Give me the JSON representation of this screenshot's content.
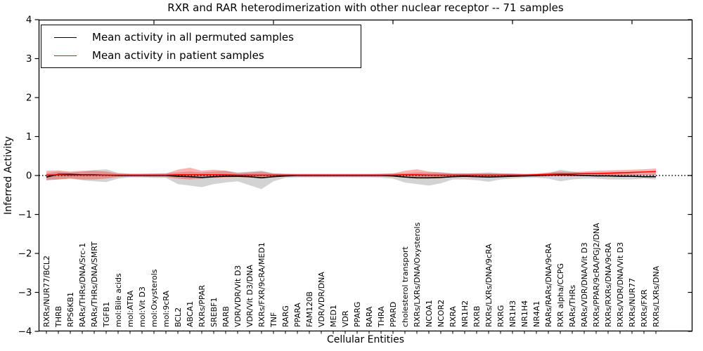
{
  "legend": {
    "entries": [
      {
        "label": "Mean activity in all permuted samples",
        "color": "#000000"
      },
      {
        "label": "Mean activity in patient samples",
        "color": "#ff0000"
      }
    ]
  },
  "chart_data": {
    "type": "line",
    "title": "RXR and RAR heterodimerization with other nuclear receptor -- 71 samples",
    "xlabel": "Cellular Entities",
    "ylabel": "Inferred Activity",
    "ylim": [
      -4,
      4
    ],
    "grid": false,
    "legend_position": "upper left",
    "zero_reference_line": {
      "style": "dotted",
      "color": "#000000",
      "y": 0
    },
    "yticks": {
      "values": [
        4,
        3,
        2,
        1,
        0,
        -1,
        -2,
        -3,
        -4
      ],
      "labels": [
        "4",
        "3",
        "2",
        "1",
        "0",
        "−1",
        "−2",
        "−3",
        "−4"
      ]
    },
    "categories": [
      "RXRs/NUR77/BCL2",
      "THRB",
      "RPS6KB1",
      "RARs/THRs/DNA/Src-1",
      "RARs/THRs/DNA/SMRT",
      "TGFB1",
      "mol:Bile acids",
      "mol:ATRA",
      "mol:Vit D3",
      "mol:Oxysterols",
      "mol:9cRA",
      "BCL2",
      "ABCA1",
      "RXRs/PPAR",
      "SREBF1",
      "RARB",
      "VDR/VDR/Vit D3",
      "VDR/Vit D3/DNA",
      "RXRs/FXR/9cRA/MED1",
      "TNF",
      "RARG",
      "PPARA",
      "FAM120B",
      "VDR/VDR/DNA",
      "MED1",
      "VDR",
      "PPARG",
      "RARA",
      "THRA",
      "PPARD",
      "cholesterol transport",
      "RXRs/LXRs/DNA/Oxysterols",
      "NCOA1",
      "NCOR2",
      "RXRA",
      "NR1H2",
      "RXRB",
      "RXRs/LXRs/DNA/9cRA",
      "RXRG",
      "NR1H3",
      "NR1H4",
      "NR4A1",
      "RARs/RARs/DNA/9cRA",
      "RXR alpha/CCPG",
      "RARs/THRs",
      "RARs/VDR/DNA/Vit D3",
      "RXRs/PPAR/9cRA/PGJ2/DNA",
      "RXRs/RXRs/DNA/9cRA",
      "RXRs/VDR/DNA/Vit D3",
      "RXRs/NUR77",
      "RXRs/FXR",
      "RXRs/LXRs/DNA"
    ],
    "series": [
      {
        "name": "Mean activity in all permuted samples",
        "color": "#000000",
        "band_color": "rgba(110,110,110,0.30)",
        "values": [
          -0.04,
          0.03,
          0.03,
          0.02,
          0.02,
          0.01,
          0,
          0,
          0,
          0,
          0,
          -0.02,
          -0.03,
          -0.05,
          -0.03,
          -0.02,
          -0.02,
          -0.03,
          -0.06,
          -0.03,
          -0.01,
          0,
          0,
          0,
          0,
          0,
          0,
          0,
          0,
          -0.01,
          -0.04,
          -0.06,
          -0.06,
          -0.05,
          -0.03,
          -0.02,
          -0.03,
          -0.04,
          -0.03,
          -0.02,
          -0.01,
          0,
          0.01,
          0.02,
          0.01,
          0,
          -0.01,
          -0.01,
          -0.02,
          -0.02,
          -0.03,
          -0.03
        ],
        "band_upper": [
          0.06,
          0.1,
          0.08,
          0.1,
          0.14,
          0.16,
          0.07,
          0.05,
          0.05,
          0.05,
          0.06,
          0.08,
          0.1,
          0.08,
          0.1,
          0.12,
          0.08,
          0.1,
          0.12,
          0.06,
          0.05,
          0.04,
          0.04,
          0.04,
          0.04,
          0.04,
          0.04,
          0.04,
          0.05,
          0.06,
          0.06,
          0.08,
          0.08,
          0.08,
          0.06,
          0.06,
          0.06,
          0.08,
          0.06,
          0.05,
          0.04,
          0.04,
          0.06,
          0.15,
          0.1,
          0.06,
          0.06,
          0.05,
          0.05,
          0.05,
          0.05,
          0.05
        ],
        "band_lower": [
          -0.12,
          -0.1,
          -0.08,
          -0.12,
          -0.15,
          -0.17,
          -0.08,
          -0.05,
          -0.05,
          -0.06,
          -0.06,
          -0.22,
          -0.26,
          -0.3,
          -0.22,
          -0.18,
          -0.15,
          -0.25,
          -0.35,
          -0.15,
          -0.06,
          -0.05,
          -0.05,
          -0.05,
          -0.05,
          -0.05,
          -0.05,
          -0.05,
          -0.06,
          -0.08,
          -0.18,
          -0.22,
          -0.26,
          -0.2,
          -0.1,
          -0.1,
          -0.12,
          -0.16,
          -0.1,
          -0.08,
          -0.06,
          -0.06,
          -0.08,
          -0.15,
          -0.1,
          -0.08,
          -0.08,
          -0.1,
          -0.1,
          -0.1,
          -0.08,
          -0.1
        ]
      },
      {
        "name": "Mean activity in patient samples",
        "color": "#ff0000",
        "band_color": "rgba(255,0,0,0.30)",
        "values": [
          0.01,
          0.02,
          0.01,
          0.01,
          0.01,
          0.01,
          0.01,
          0.01,
          0.01,
          0.01,
          0.01,
          0.02,
          0.02,
          0.02,
          0.02,
          0.02,
          0.01,
          0.01,
          0.01,
          0.01,
          0.01,
          0.01,
          0.01,
          0.01,
          0.01,
          0.01,
          0.01,
          0.01,
          0.01,
          0.01,
          0.02,
          0.02,
          0.01,
          0.01,
          0.01,
          0.01,
          0.01,
          0.01,
          0.01,
          0.01,
          0.01,
          0.02,
          0.03,
          0.04,
          0.04,
          0.05,
          0.05,
          0.06,
          0.07,
          0.08,
          0.09,
          0.1
        ],
        "band_upper": [
          0.12,
          0.13,
          0.1,
          0.12,
          0.12,
          0.1,
          0.05,
          0.04,
          0.04,
          0.05,
          0.05,
          0.15,
          0.2,
          0.12,
          0.15,
          0.12,
          0.06,
          0.08,
          0.1,
          0.05,
          0.04,
          0.04,
          0.04,
          0.04,
          0.04,
          0.04,
          0.04,
          0.04,
          0.04,
          0.05,
          0.12,
          0.16,
          0.1,
          0.08,
          0.05,
          0.05,
          0.06,
          0.06,
          0.05,
          0.05,
          0.04,
          0.05,
          0.08,
          0.1,
          0.09,
          0.1,
          0.12,
          0.13,
          0.14,
          0.15,
          0.16,
          0.18
        ],
        "band_lower": [
          -0.12,
          -0.1,
          -0.08,
          -0.1,
          -0.1,
          -0.08,
          -0.04,
          -0.03,
          -0.03,
          -0.04,
          -0.04,
          -0.08,
          -0.1,
          -0.08,
          -0.06,
          -0.05,
          -0.04,
          -0.05,
          -0.06,
          -0.04,
          -0.03,
          -0.03,
          -0.03,
          -0.03,
          -0.03,
          -0.03,
          -0.03,
          -0.03,
          -0.03,
          -0.03,
          -0.05,
          -0.06,
          -0.05,
          -0.04,
          -0.04,
          -0.04,
          -0.04,
          -0.04,
          -0.03,
          -0.03,
          -0.03,
          -0.03,
          -0.02,
          -0.02,
          -0.02,
          -0.01,
          0.0,
          0.0,
          0.0,
          0.01,
          0.02,
          0.02
        ]
      }
    ]
  }
}
